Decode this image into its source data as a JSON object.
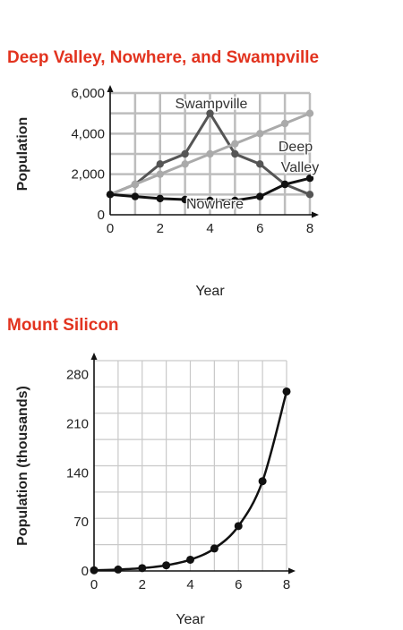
{
  "chart_data": [
    {
      "type": "line",
      "title": "Deep Valley, Nowhere, and Swampville",
      "xlabel": "Year",
      "ylabel": "Population",
      "xlim": [
        0,
        8
      ],
      "ylim": [
        0,
        6000
      ],
      "xticks": [
        0,
        2,
        4,
        6,
        8
      ],
      "xtick_labels": [
        "0",
        "2",
        "4",
        "6",
        "8"
      ],
      "yticks": [
        0,
        2000,
        4000,
        6000
      ],
      "ytick_labels": [
        "0",
        "2,000",
        "4,000",
        "6,000"
      ],
      "grid": true,
      "x": [
        0,
        1,
        2,
        3,
        4,
        5,
        6,
        7,
        8
      ],
      "series": [
        {
          "name": "Swampville",
          "values": [
            1000,
            1500,
            2500,
            3000,
            5000,
            3000,
            2500,
            1500,
            1000
          ],
          "color": "#555555"
        },
        {
          "name": "Deep Valley",
          "values": [
            1000,
            1500,
            2000,
            2500,
            3000,
            3500,
            4000,
            4500,
            5000
          ],
          "color": "#aaaaaa"
        },
        {
          "name": "Nowhere",
          "values": [
            1000,
            900,
            800,
            750,
            700,
            700,
            900,
            1500,
            1800
          ],
          "color": "#111111"
        }
      ],
      "series_label_lines": {
        "Swampville": [
          "Swampville"
        ],
        "Deep Valley": [
          "Deep",
          "Valley"
        ],
        "Nowhere": [
          "Nowhere"
        ]
      }
    },
    {
      "type": "line",
      "title": "Mount Silicon",
      "xlabel": "Year",
      "ylabel": "Population (thousands)",
      "xlim": [
        0,
        8
      ],
      "ylim": [
        0,
        300
      ],
      "xticks": [
        0,
        2,
        4,
        6,
        8
      ],
      "xtick_labels": [
        "0",
        "2",
        "4",
        "6",
        "8"
      ],
      "yticks": [
        0,
        70,
        140,
        210,
        280
      ],
      "ytick_labels": [
        "0",
        "70",
        "140",
        "210",
        "280"
      ],
      "grid": true,
      "x": [
        0,
        1,
        2,
        3,
        4,
        5,
        6,
        7,
        8
      ],
      "series": [
        {
          "values": [
            1,
            2,
            4,
            8,
            16,
            32,
            64,
            128,
            256
          ],
          "color": "#111111"
        }
      ]
    }
  ]
}
